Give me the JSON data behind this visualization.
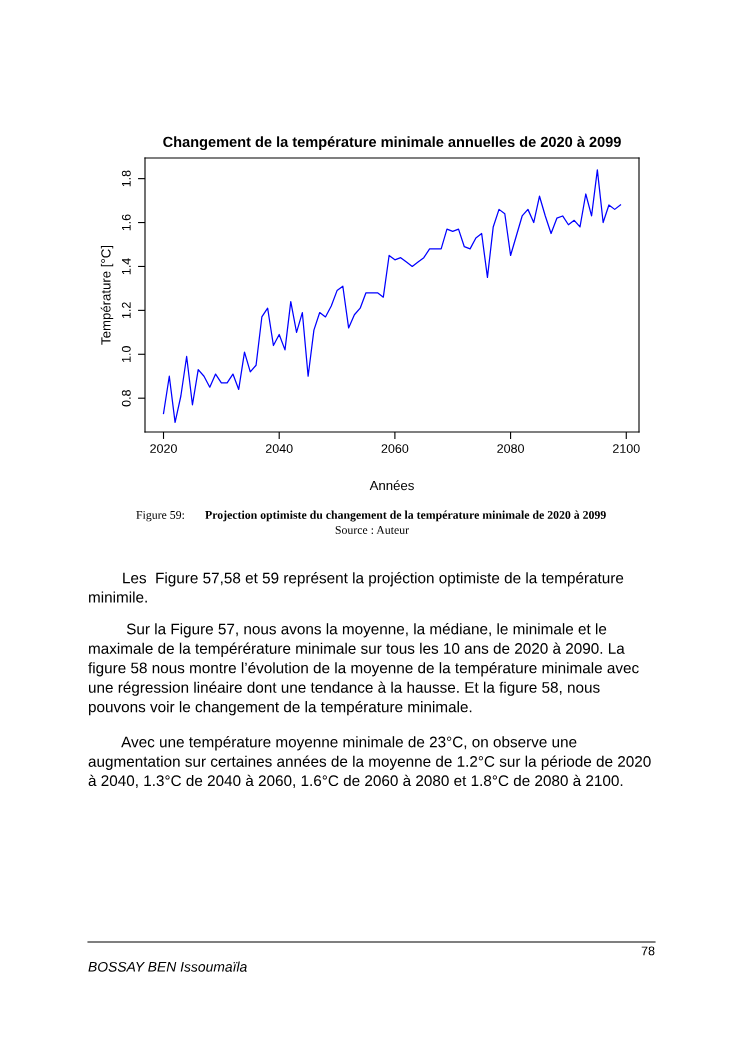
{
  "chart_data": {
    "type": "line",
    "title": "Changement de la température minimale annuelles de 2020 à 2099",
    "xlabel": "Années",
    "ylabel": "Température [°C]",
    "x": [
      2020,
      2021,
      2022,
      2023,
      2024,
      2025,
      2026,
      2027,
      2028,
      2029,
      2030,
      2031,
      2032,
      2033,
      2034,
      2035,
      2036,
      2037,
      2038,
      2039,
      2040,
      2041,
      2042,
      2043,
      2044,
      2045,
      2046,
      2047,
      2048,
      2049,
      2050,
      2051,
      2052,
      2053,
      2054,
      2055,
      2056,
      2057,
      2058,
      2059,
      2060,
      2061,
      2062,
      2063,
      2064,
      2065,
      2066,
      2067,
      2068,
      2069,
      2070,
      2071,
      2072,
      2073,
      2074,
      2075,
      2076,
      2077,
      2078,
      2079,
      2080,
      2081,
      2082,
      2083,
      2084,
      2085,
      2086,
      2087,
      2088,
      2089,
      2090,
      2091,
      2092,
      2093,
      2094,
      2095,
      2096,
      2097,
      2098,
      2099
    ],
    "series": [
      {
        "color": "#0000ff",
        "values": [
          0.73,
          0.9,
          0.69,
          0.81,
          0.99,
          0.77,
          0.93,
          0.9,
          0.85,
          0.91,
          0.87,
          0.87,
          0.91,
          0.84,
          1.01,
          0.92,
          0.95,
          1.17,
          1.21,
          1.04,
          1.09,
          1.02,
          1.24,
          1.1,
          1.19,
          0.9,
          1.11,
          1.19,
          1.17,
          1.22,
          1.29,
          1.31,
          1.12,
          1.18,
          1.21,
          1.28,
          1.28,
          1.28,
          1.26,
          1.45,
          1.43,
          1.44,
          1.42,
          1.4,
          1.42,
          1.44,
          1.48,
          1.48,
          1.48,
          1.57,
          1.56,
          1.57,
          1.49,
          1.48,
          1.53,
          1.55,
          1.35,
          1.58,
          1.66,
          1.64,
          1.45,
          1.54,
          1.63,
          1.66,
          1.6,
          1.72,
          1.63,
          1.55,
          1.62,
          1.63,
          1.59,
          1.61,
          1.58,
          1.73,
          1.63,
          1.84,
          1.6,
          1.68,
          1.66,
          1.68
        ]
      }
    ],
    "xlim": [
      2016.8,
      2102.2
    ],
    "ylim": [
      0.646,
      1.894
    ],
    "xticks": [
      2020,
      2040,
      2060,
      2080,
      2100
    ],
    "yticks": [
      0.8,
      {
        "value": 1,
        "label": "1.0"
      },
      1.2,
      1.4,
      1.6,
      1.8
    ],
    "grid": false,
    "legend": false,
    "annotations": [
      "Figure 59:",
      "Projection optimiste du changement de la température minimale de 2020 à 2099",
      "Source : Auteur",
      "Les  Figure 57,58 et 59 représent la projéction optimiste de la température minimile.",
      "Sur la Figure 57, nous avons la moyenne, la médiane, le minimale et le maximale de la tempérérature minimale sur tous les 10 ans de 2020 à 2090. La figure 58 nous montre l’évolution de la moyenne de la température minimale avec une régression linéaire dont une tendance à la hausse. Et la figure 58, nous pouvons voir le changement de la température minimale.",
      "Avec une température moyenne minimale de 23°C, on observe une augmentation sur certaines années de la moyenne de 1.2°C sur la période de 2020 à 2040, 1.3°C de 2040 à 2060, 1.6°C de 2060 à 2080 et 1.8°C de 2080 à 2100.",
      "78",
      "BOSSAY BEN Issoumaïla"
    ]
  }
}
